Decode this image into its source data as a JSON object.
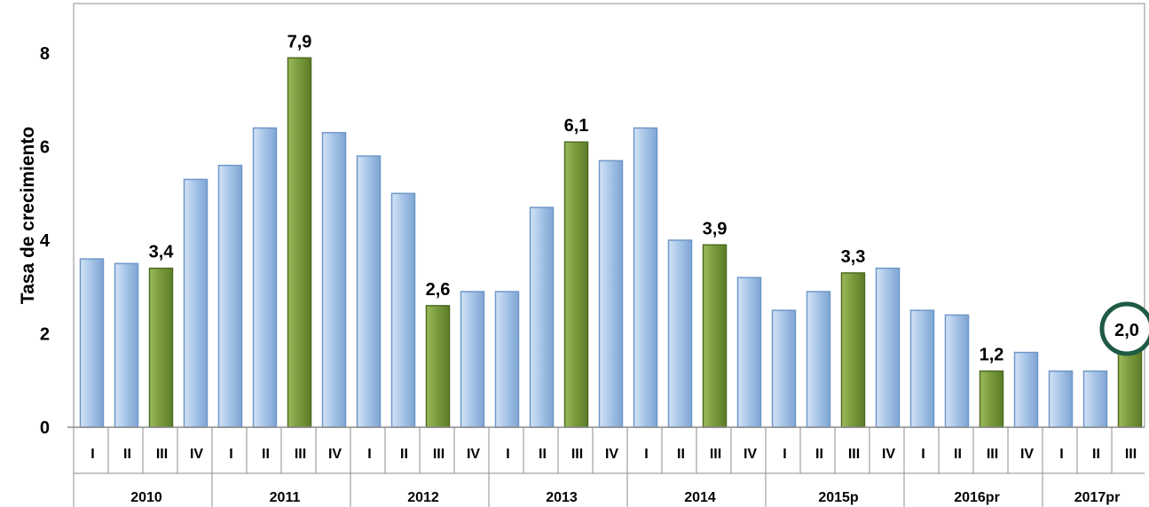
{
  "chart_data": {
    "type": "bar",
    "ylabel": "Tasa de crecimiento",
    "ylim": [
      0,
      9
    ],
    "yticks": [
      "0",
      "2",
      "4",
      "6",
      "8"
    ],
    "years": [
      {
        "label": "2010",
        "quarters": [
          "I",
          "II",
          "III",
          "IV"
        ]
      },
      {
        "label": "2011",
        "quarters": [
          "I",
          "II",
          "III",
          "IV"
        ]
      },
      {
        "label": "2012",
        "quarters": [
          "I",
          "II",
          "III",
          "IV"
        ]
      },
      {
        "label": "2013",
        "quarters": [
          "I",
          "II",
          "III",
          "IV"
        ]
      },
      {
        "label": "2014",
        "quarters": [
          "I",
          "II",
          "III",
          "IV"
        ]
      },
      {
        "label": "2015p",
        "quarters": [
          "I",
          "II",
          "III",
          "IV"
        ]
      },
      {
        "label": "2016pr",
        "quarters": [
          "I",
          "II",
          "III",
          "IV"
        ]
      },
      {
        "label": "2017pr",
        "quarters": [
          "I",
          "II",
          "III"
        ]
      }
    ],
    "values": [
      3.6,
      3.5,
      3.4,
      5.3,
      5.6,
      6.4,
      7.9,
      6.3,
      5.8,
      5.0,
      2.6,
      2.9,
      2.9,
      4.7,
      6.1,
      5.7,
      6.4,
      4.0,
      3.9,
      3.2,
      2.5,
      2.9,
      3.3,
      3.4,
      2.5,
      2.4,
      1.2,
      1.6,
      1.2,
      1.2,
      2.0
    ],
    "highlight_indices": [
      2,
      6,
      10,
      14,
      18,
      22,
      26,
      30
    ],
    "value_labels": [
      {
        "index": 2,
        "text": "3,4"
      },
      {
        "index": 6,
        "text": "7,9"
      },
      {
        "index": 10,
        "text": "2,6"
      },
      {
        "index": 14,
        "text": "6,1"
      },
      {
        "index": 18,
        "text": "3,9"
      },
      {
        "index": 22,
        "text": "3,3"
      },
      {
        "index": 26,
        "text": "1,2"
      },
      {
        "index": 30,
        "text": "2,0"
      }
    ],
    "circled_index": 30,
    "colors": {
      "bar": "#a7c4e6",
      "bar_dark": "#6f97c9",
      "highlight": "#76973b",
      "highlight_dark": "#4f6b22",
      "circle": "#1f5a42"
    },
    "grid": false,
    "legend": "none"
  }
}
